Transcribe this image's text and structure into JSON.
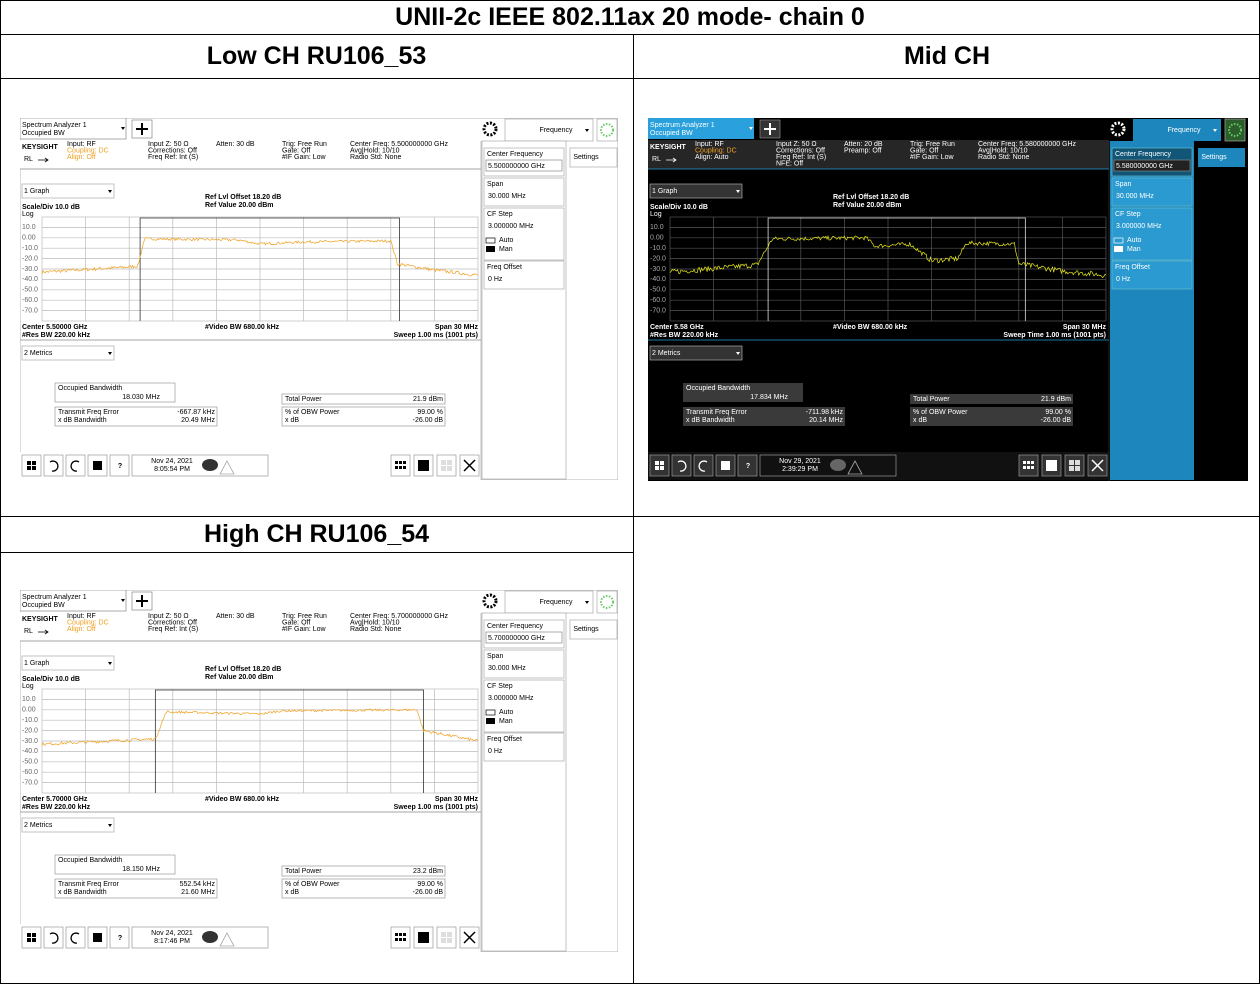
{
  "title": "UNII-2c IEEE 802.11ax 20 mode- chain 0",
  "panels": [
    {
      "heading": "Low CH RU106_53",
      "theme": "light",
      "screen": {
        "tab": [
          "Spectrum Analyzer 1",
          "Occupied BW"
        ],
        "menu": "Frequency",
        "brand": "KEYSIGHT",
        "rl": "RL",
        "input": [
          "Input: RF",
          "Coupling: DC",
          "Align: Off"
        ],
        "col2": [
          "Input Z: 50 Ω",
          "Corrections: Off",
          "Freq Ref: Int (S)"
        ],
        "col3": [
          "Atten: 30 dB"
        ],
        "col4": [
          "Trig: Free Run",
          "Gate: Off",
          "#IF Gain: Low"
        ],
        "col5": [
          "Center Freq: 5.500000000 GHz",
          "Avg|Hold: 10/10",
          "Radio Std: None"
        ],
        "settings": "Settings",
        "graph_menu": "1 Graph",
        "ref": [
          "Ref Lvl Offset 18.20 dB",
          "Ref Value 20.00 dBm"
        ],
        "scale": "Scale/Div 10.0 dB",
        "log": "Log",
        "yticks": [
          "10.0",
          "0.00",
          "-10.0",
          "-20.0",
          "-30.0",
          "-40.0",
          "-50.0",
          "-60.0",
          "-70.0"
        ],
        "bottom": {
          "center": "Center 5.50000 GHz",
          "vbw": "#Video BW 680.00 kHz",
          "span": "Span 30 MHz",
          "rbw": "#Res BW 220.00 kHz",
          "sweep": "Sweep 1.00 ms (1001 pts)"
        },
        "metrics_menu": "2 Metrics",
        "metrics": {
          "obw_label": "Occupied Bandwidth",
          "obw": "18.030 MHz",
          "tp_label": "Total Power",
          "tp": "21.9 dBm",
          "tfe_label": "Transmit Freq Error",
          "tfe": "-667.87 kHz",
          "xbw_label": "x dB Bandwidth",
          "xbw": "20.49 MHz",
          "pct_label": "% of OBW Power",
          "pct": "99.00 %",
          "xdb_label": "x dB",
          "xdb": "-26.00 dB"
        },
        "side": {
          "cf_label": "Center Frequency",
          "cf": "5.500000000 GHz",
          "span_label": "Span",
          "span": "30.000 MHz",
          "step_label": "CF Step",
          "step": "3.000000 MHz",
          "auto": "Auto",
          "man": "Man",
          "off_label": "Freq Offset",
          "off": "0 Hz"
        },
        "date": [
          "Nov 24, 2021",
          "8:05:54 PM"
        ]
      }
    },
    {
      "heading": "Mid CH",
      "theme": "dark",
      "screen": {
        "tab": [
          "Spectrum Analyzer 1",
          "Occupied BW"
        ],
        "menu": "Frequency",
        "brand": "KEYSIGHT",
        "rl": "RL",
        "input": [
          "Input: RF",
          "Coupling: DC",
          "Align: Auto"
        ],
        "col2": [
          "Input Z: 50 Ω",
          "Corrections: Off",
          "Freq Ref: Int (S)",
          "NFE: Off"
        ],
        "col3": [
          "Atten: 20 dB",
          "Preamp: Off"
        ],
        "col4": [
          "Trig: Free Run",
          "Gate: Off",
          "#IF Gain: Low"
        ],
        "col5": [
          "Center Freq: 5.580000000 GHz",
          "Avg|Hold: 10/10",
          "Radio Std: None"
        ],
        "settings": "Settings",
        "graph_menu": "1 Graph",
        "ref": [
          "Ref Lvl Offset 18.20 dB",
          "Ref Value 20.00 dBm"
        ],
        "scale": "Scale/Div 10.0 dB",
        "log": "Log",
        "yticks": [
          "10.0",
          "0.00",
          "-10.0",
          "-20.0",
          "-30.0",
          "-40.0",
          "-50.0",
          "-60.0",
          "-70.0"
        ],
        "bottom": {
          "center": "Center 5.58 GHz",
          "vbw": "#Video BW 680.00 kHz",
          "span": "Span 30 MHz",
          "rbw": "#Res BW 220.00 kHz",
          "sweep": "Sweep Time 1.00 ms (1001 pts)"
        },
        "metrics_menu": "2 Metrics",
        "metrics": {
          "obw_label": "Occupied Bandwidth",
          "obw": "17.834 MHz",
          "tp_label": "Total Power",
          "tp": "21.9 dBm",
          "tfe_label": "Transmit Freq Error",
          "tfe": "-711.98 kHz",
          "xbw_label": "x dB Bandwidth",
          "xbw": "20.14 MHz",
          "pct_label": "% of OBW Power",
          "pct": "99.00 %",
          "xdb_label": "x dB",
          "xdb": "-26.00 dB"
        },
        "side": {
          "cf_label": "Center Frequency",
          "cf": "5.580000000 GHz",
          "span_label": "Span",
          "span": "30.000 MHz",
          "step_label": "CF Step",
          "step": "3.000000 MHz",
          "auto": "Auto",
          "man": "Man",
          "off_label": "Freq Offset",
          "off": "0 Hz"
        },
        "date": [
          "Nov 29, 2021",
          "2:39:29 PM"
        ]
      }
    },
    {
      "heading": "High CH RU106_54",
      "theme": "light",
      "screen": {
        "tab": [
          "Spectrum Analyzer 1",
          "Occupied BW"
        ],
        "menu": "Frequency",
        "brand": "KEYSIGHT",
        "rl": "RL",
        "input": [
          "Input: RF",
          "Coupling: DC",
          "Align: Off"
        ],
        "col2": [
          "Input Z: 50 Ω",
          "Corrections: Off",
          "Freq Ref: Int (S)"
        ],
        "col3": [
          "Atten: 30 dB"
        ],
        "col4": [
          "Trig: Free Run",
          "Gate: Off",
          "#IF Gain: Low"
        ],
        "col5": [
          "Center Freq: 5.700000000 GHz",
          "Avg|Hold: 10/10",
          "Radio Std: None"
        ],
        "settings": "Settings",
        "graph_menu": "1 Graph",
        "ref": [
          "Ref Lvl Offset 18.20 dB",
          "Ref Value 20.00 dBm"
        ],
        "scale": "Scale/Div 10.0 dB",
        "log": "Log",
        "yticks": [
          "10.0",
          "0.00",
          "-10.0",
          "-20.0",
          "-30.0",
          "-40.0",
          "-50.0",
          "-60.0",
          "-70.0"
        ],
        "bottom": {
          "center": "Center 5.70000 GHz",
          "vbw": "#Video BW 680.00 kHz",
          "span": "Span 30 MHz",
          "rbw": "#Res BW 220.00 kHz",
          "sweep": "Sweep 1.00 ms (1001 pts)"
        },
        "metrics_menu": "2 Metrics",
        "metrics": {
          "obw_label": "Occupied Bandwidth",
          "obw": "18.150 MHz",
          "tp_label": "Total Power",
          "tp": "23.2 dBm",
          "tfe_label": "Transmit Freq Error",
          "tfe": "552.54 kHz",
          "xbw_label": "x dB Bandwidth",
          "xbw": "21.60 MHz",
          "pct_label": "% of OBW Power",
          "pct": "99.00 %",
          "xdb_label": "x dB",
          "xdb": "-26.00 dB"
        },
        "side": {
          "cf_label": "Center Frequency",
          "cf": "5.700000000 GHz",
          "span_label": "Span",
          "span": "30.000 MHz",
          "step_label": "CF Step",
          "step": "3.000000 MHz",
          "auto": "Auto",
          "man": "Man",
          "off_label": "Freq Offset",
          "off": "0 Hz"
        },
        "date": [
          "Nov 24, 2021",
          "8:17:46 PM"
        ]
      }
    }
  ]
}
